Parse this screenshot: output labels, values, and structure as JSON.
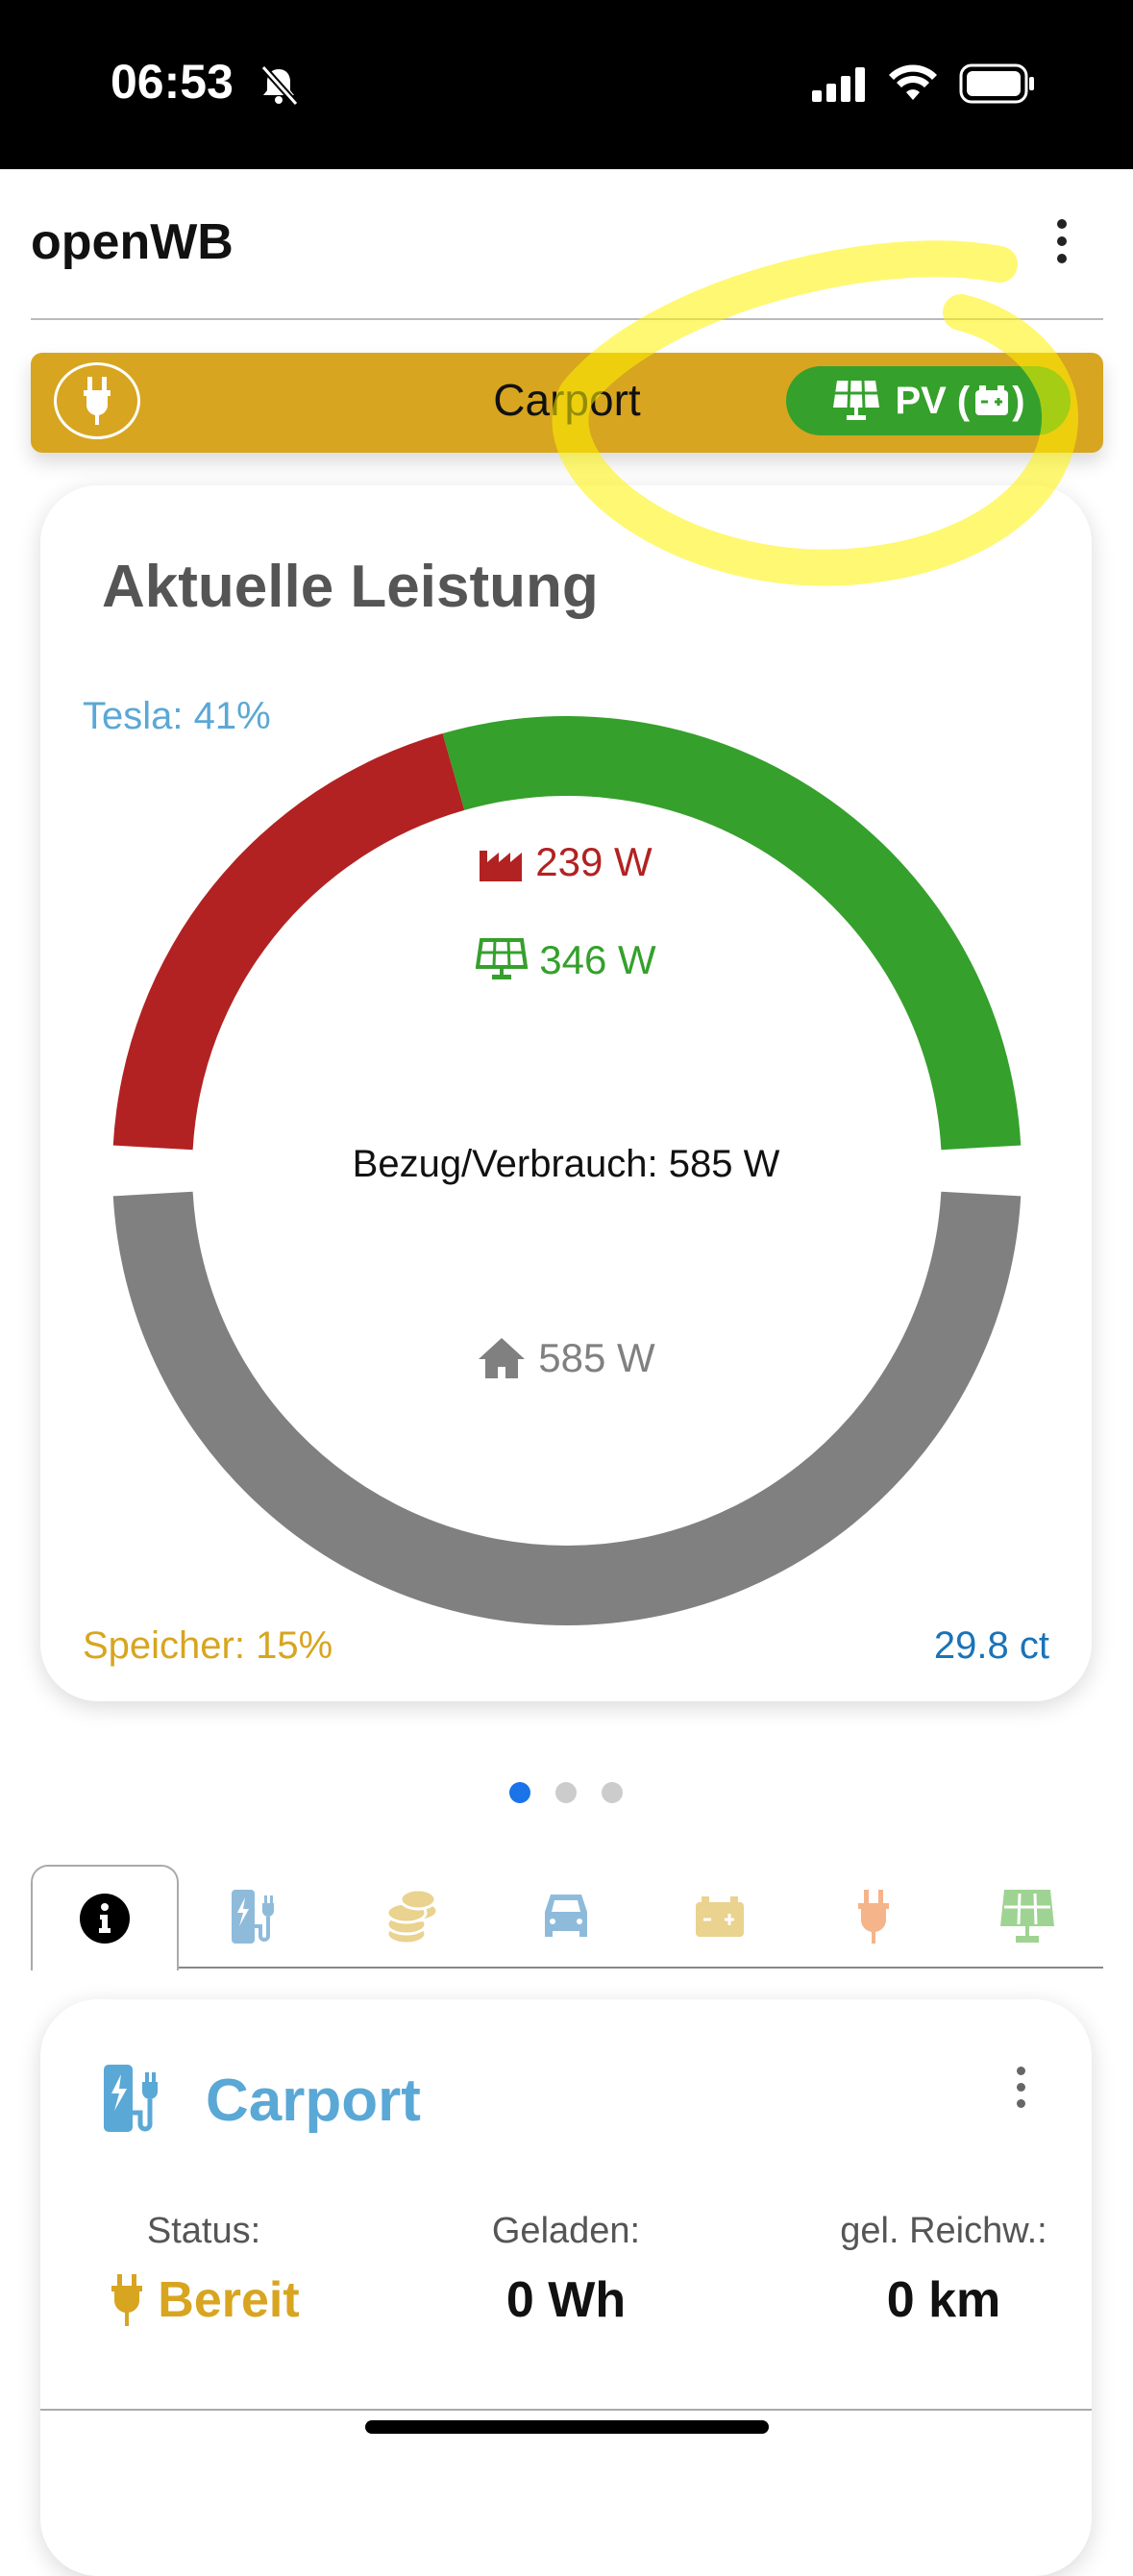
{
  "status_bar": {
    "time": "06:53"
  },
  "header": {
    "title": "openWB"
  },
  "chargepoint_bar": {
    "label": "Carport",
    "mode_button": "PV (",
    "mode_button_suffix": ")"
  },
  "power_card": {
    "title": "Aktuelle Leistung",
    "vehicle_soc": "Tesla: 41%",
    "grid": "239 W",
    "pv": "346 W",
    "center": "Bezug/Verbrauch: 585 W",
    "house": "585 W",
    "battery_soc": "Speicher: 15%",
    "price": "29.8 ct",
    "colors": {
      "grid": "#b22222",
      "pv": "#35a02c",
      "house": "#808080"
    },
    "values": {
      "grid": 239,
      "pv": 346,
      "house": 585
    }
  },
  "pager": {
    "count": 3,
    "active": 0
  },
  "tabs": [
    {
      "icon": "info-icon"
    },
    {
      "icon": "charge-station-icon"
    },
    {
      "icon": "coins-icon"
    },
    {
      "icon": "car-icon"
    },
    {
      "icon": "battery-icon"
    },
    {
      "icon": "plug-icon"
    },
    {
      "icon": "solar-panel-icon"
    }
  ],
  "chargepoint_card": {
    "title": "Carport",
    "status_label": "Status:",
    "status_value": "Bereit",
    "charged_label": "Geladen:",
    "charged_value": "0 Wh",
    "range_label": "gel. Reichw.:",
    "range_value": "0 km"
  }
}
